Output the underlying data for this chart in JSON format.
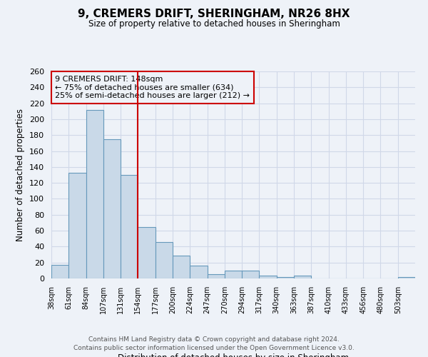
{
  "title": "9, CREMERS DRIFT, SHERINGHAM, NR26 8HX",
  "subtitle": "Size of property relative to detached houses in Sheringham",
  "xlabel": "Distribution of detached houses by size in Sheringham",
  "ylabel": "Number of detached properties",
  "bin_labels": [
    "38sqm",
    "61sqm",
    "84sqm",
    "107sqm",
    "131sqm",
    "154sqm",
    "177sqm",
    "200sqm",
    "224sqm",
    "247sqm",
    "270sqm",
    "294sqm",
    "317sqm",
    "340sqm",
    "363sqm",
    "387sqm",
    "410sqm",
    "433sqm",
    "456sqm",
    "480sqm",
    "503sqm"
  ],
  "bar_heights": [
    17,
    133,
    212,
    175,
    130,
    65,
    46,
    29,
    16,
    5,
    10,
    10,
    4,
    2,
    4,
    0,
    0,
    0,
    0,
    0,
    2
  ],
  "bar_color": "#c9d9e8",
  "bar_edge_color": "#6699bb",
  "vline_x": 5,
  "vline_color": "#cc0000",
  "annotation_title": "9 CREMERS DRIFT: 148sqm",
  "annotation_line1": "← 75% of detached houses are smaller (634)",
  "annotation_line2": "25% of semi-detached houses are larger (212) →",
  "annotation_box_color": "#cc0000",
  "ylim": [
    0,
    260
  ],
  "yticks": [
    0,
    20,
    40,
    60,
    80,
    100,
    120,
    140,
    160,
    180,
    200,
    220,
    240,
    260
  ],
  "grid_color": "#d0d8e8",
  "bg_color": "#eef2f8",
  "footer1": "Contains HM Land Registry data © Crown copyright and database right 2024.",
  "footer2": "Contains public sector information licensed under the Open Government Licence v3.0."
}
